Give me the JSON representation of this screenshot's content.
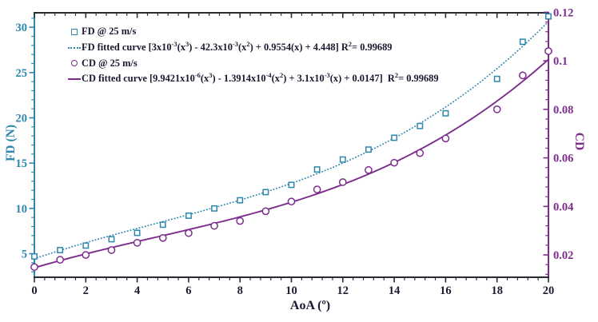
{
  "figure": {
    "background": "#ffffff",
    "text_color": "#181830",
    "spine_dark_color": "#2a2a33"
  },
  "chart_data": {
    "type": "scatter",
    "title": "",
    "grid": false,
    "legend_position": "top-left-inside",
    "x_axis": {
      "label": "AoA (º)",
      "min": 0,
      "max": 20,
      "tick_values": [
        0,
        2,
        4,
        6,
        8,
        10,
        12,
        14,
        16,
        18,
        20
      ],
      "tick_labels": [
        "0",
        "2",
        "4",
        "6",
        "8",
        "10",
        "12",
        "14",
        "16",
        "18",
        "20"
      ],
      "minor_step": 0.4,
      "tick_label_color": "#1d1d30"
    },
    "y_left": {
      "label": "FD (N)",
      "min": 2.4,
      "max": 31.6,
      "tick_values": [
        5,
        10,
        15,
        20,
        25,
        30
      ],
      "tick_labels": [
        "5",
        "10",
        "15",
        "20",
        "25",
        "30"
      ],
      "minor_step": 1,
      "color": "#2e87ac"
    },
    "y_right": {
      "label": "CD",
      "min": 0.0108,
      "max": 0.1198,
      "tick_values": [
        0.02,
        0.04,
        0.06,
        0.08,
        0.1,
        0.12
      ],
      "tick_labels": [
        "0.02",
        "0.04",
        "0.06",
        "0.08",
        "0.1",
        "0.12"
      ],
      "minor_step": 0.004,
      "color": "#7c2d8c"
    },
    "series": [
      {
        "id": "fd-points",
        "name": "FD @ 25 m/s",
        "axis": "left",
        "kind": "scatter",
        "marker": "square",
        "color": "#2e87ac",
        "x": [
          0,
          1,
          2,
          3,
          4,
          5,
          6,
          7,
          8,
          9,
          10,
          11,
          12,
          13,
          14,
          15,
          16,
          18,
          19,
          20
        ],
        "y": [
          4.7,
          5.4,
          5.9,
          6.6,
          7.3,
          8.2,
          9.2,
          10.0,
          10.9,
          11.8,
          12.6,
          14.3,
          15.4,
          16.5,
          17.8,
          19.1,
          20.5,
          24.3,
          28.4,
          31.2
        ]
      },
      {
        "id": "fd-fit",
        "name": "FD fitted curve",
        "axis": "left",
        "kind": "fit",
        "style": "dotted",
        "color": "#2e87ac",
        "poly": [
          0.003,
          -0.0423,
          0.9554,
          4.448
        ],
        "r_squared": 0.99689
      },
      {
        "id": "cd-points",
        "name": "CD @ 25 m/s",
        "axis": "right",
        "kind": "scatter",
        "marker": "circle",
        "color": "#7c2d8c",
        "x": [
          0,
          1,
          2,
          3,
          4,
          5,
          6,
          7,
          8,
          9,
          10,
          11,
          12,
          13,
          14,
          15,
          16,
          18,
          19,
          20
        ],
        "y": [
          0.015,
          0.018,
          0.02,
          0.022,
          0.025,
          0.027,
          0.029,
          0.032,
          0.034,
          0.038,
          0.042,
          0.047,
          0.05,
          0.055,
          0.058,
          0.062,
          0.068,
          0.08,
          0.094,
          0.104
        ]
      },
      {
        "id": "cd-fit",
        "name": "CD fitted curve",
        "axis": "right",
        "kind": "fit",
        "style": "solid",
        "color": "#7c2d8c",
        "poly": [
          9.9421e-06,
          -0.00013914,
          0.0031,
          0.0147
        ],
        "r_squared": 0.99689
      }
    ]
  },
  "legend": {
    "items": [
      {
        "marker": "square",
        "color": "#2e87ac",
        "segments": [
          {
            "t": "FD @ 25 m/s"
          }
        ]
      },
      {
        "marker": "dotted",
        "color": "#2e87ac",
        "segments": [
          {
            "t": "FD fitted curve [3x10"
          },
          {
            "s": "-3"
          },
          {
            "t": "(x"
          },
          {
            "s": "3"
          },
          {
            "t": ") - 42.3x10"
          },
          {
            "s": "-3"
          },
          {
            "t": "(x"
          },
          {
            "s": "2"
          },
          {
            "t": ") + 0.9554(x) + 4.448] R"
          },
          {
            "s": "2"
          },
          {
            "t": "= 0.99689"
          }
        ]
      },
      {
        "marker": "circle",
        "color": "#7c2d8c",
        "segments": [
          {
            "t": "CD @ 25 m/s"
          }
        ]
      },
      {
        "marker": "solid",
        "color": "#7c2d8c",
        "segments": [
          {
            "t": "CD fitted curve [9.9421x10"
          },
          {
            "s": "-6"
          },
          {
            "t": "(x"
          },
          {
            "s": "3"
          },
          {
            "t": ") - 1.3914x10"
          },
          {
            "s": "-4"
          },
          {
            "t": "(x"
          },
          {
            "s": "2"
          },
          {
            "t": ") + 3.1x10"
          },
          {
            "s": "-3"
          },
          {
            "t": "(x) + 0.0147]  R"
          },
          {
            "s": "2"
          },
          {
            "t": "= 0.99689"
          }
        ]
      }
    ]
  }
}
